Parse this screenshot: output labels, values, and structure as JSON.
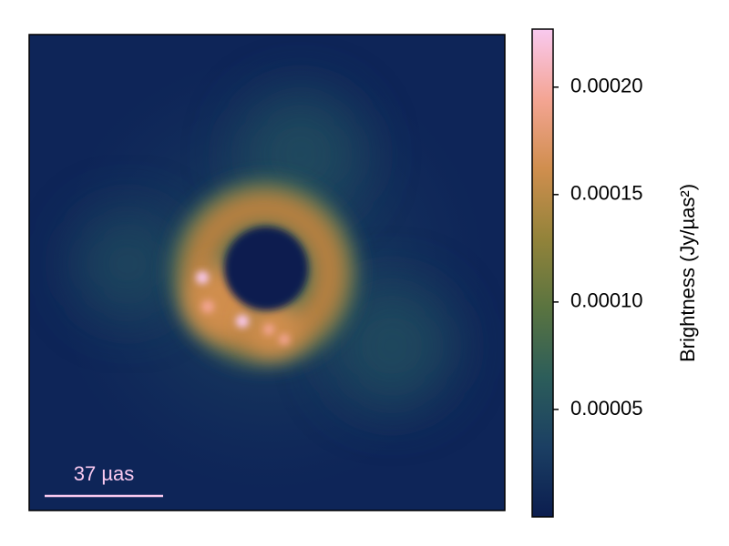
{
  "chart_data": {
    "type": "image",
    "scale_bar": "37 µas",
    "colorbar": {
      "label": "Brightness (Jy/µas²)",
      "lim": [
        0,
        0.000227
      ],
      "ticks": [
        5e-05,
        {
          "value": 0.0001,
          "label": "0.00010"
        },
        {
          "value": 0.00015,
          "label": "0.00015"
        },
        {
          "value": 0.0002,
          "label": "0.00020"
        }
      ],
      "colormap": [
        "#0b1d4f",
        "#1b3f63",
        "#2c5d5a",
        "#5a7440",
        "#93833a",
        "#d08e4e",
        "#f4a594",
        "#f9c9ef"
      ]
    }
  }
}
